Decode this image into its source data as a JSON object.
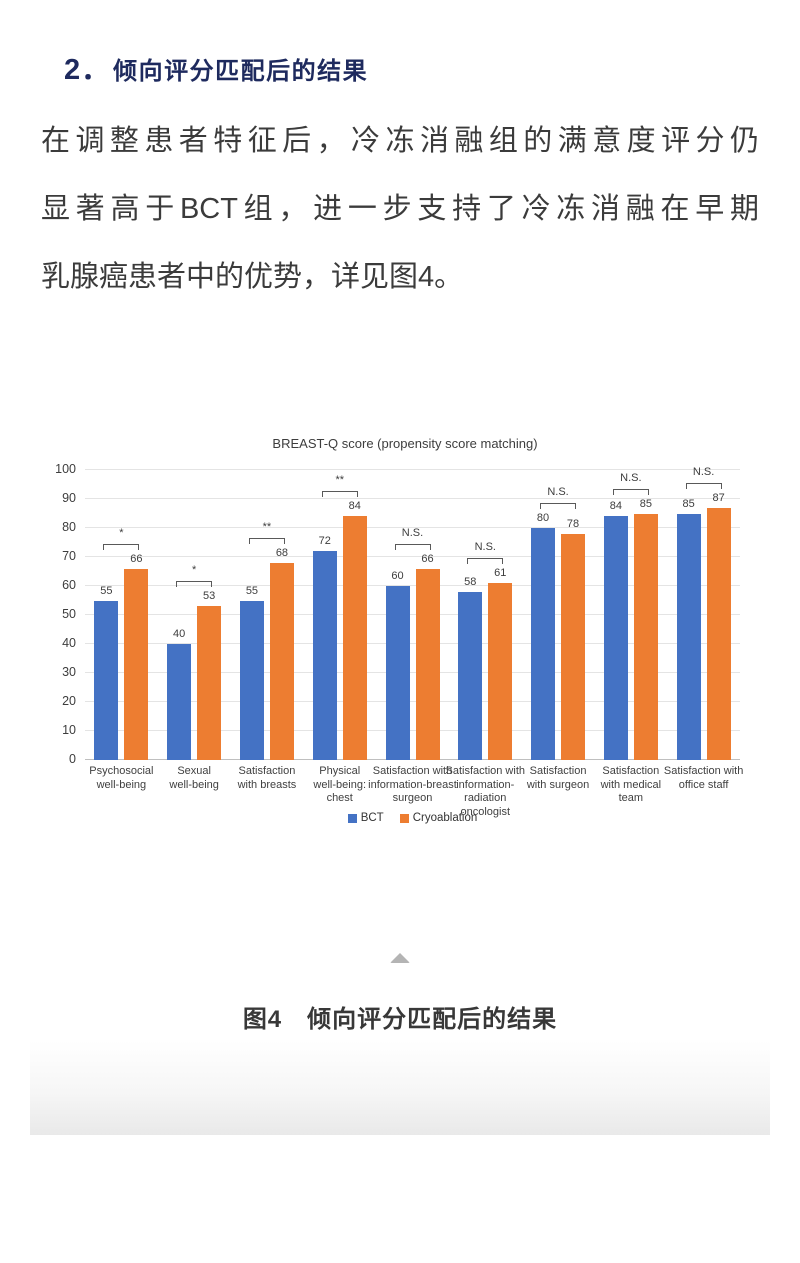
{
  "heading": {
    "number": "2．",
    "text": "倾向评分匹配后的结果"
  },
  "paragraph": {
    "lines": [
      "在调整患者特征后，冷冻消融组的满意度评分仍",
      "显著高于BCT组，进一步支持了冷冻消融在早期",
      "乳腺癌患者中的优势，详见图4。"
    ]
  },
  "figure_caption": "图4　倾向评分匹配后的结果",
  "icons": {
    "divider": "up-triangle-icon"
  },
  "colors": {
    "heading": "#1e2a5e",
    "body_text": "#3b3b3b",
    "bct": "#4472c4",
    "cryoablation": "#ed7d31",
    "grid": "#e4e4e4",
    "axis_text": "#404040",
    "triangle": "#b4b4b4"
  },
  "chart_data": {
    "type": "bar",
    "title": "BREAST-Q score (propensity score matching)",
    "categories": [
      "Psychosocial\nwell-being",
      "Sexual\nwell-being",
      "Satisfaction\nwith breasts",
      "Physical\nwell-being:\nchest",
      "Satisfaction with\ninformation-breast\nsurgeon",
      "Satisfaction with\ninformation-\nradiation\noncologist",
      "Satisfaction\nwith surgeon",
      "Satisfaction\nwith medical\nteam",
      "Satisfaction with\noffice staff"
    ],
    "series": [
      {
        "name": "BCT",
        "color": "#4472c4",
        "values": [
          55,
          40,
          55,
          72,
          60,
          58,
          80,
          84,
          85
        ]
      },
      {
        "name": "Cryoablation",
        "color": "#ed7d31",
        "values": [
          66,
          53,
          68,
          84,
          66,
          61,
          78,
          85,
          87
        ]
      }
    ],
    "significance": [
      "*",
      "*",
      "**",
      "**",
      "N.S.",
      "N.S.",
      "N.S.",
      "N.S.",
      "N.S."
    ],
    "xlabel": "",
    "ylabel": "",
    "ylim": [
      0,
      100
    ],
    "ytick_step": 10,
    "grid": true,
    "legend_position": "bottom"
  }
}
